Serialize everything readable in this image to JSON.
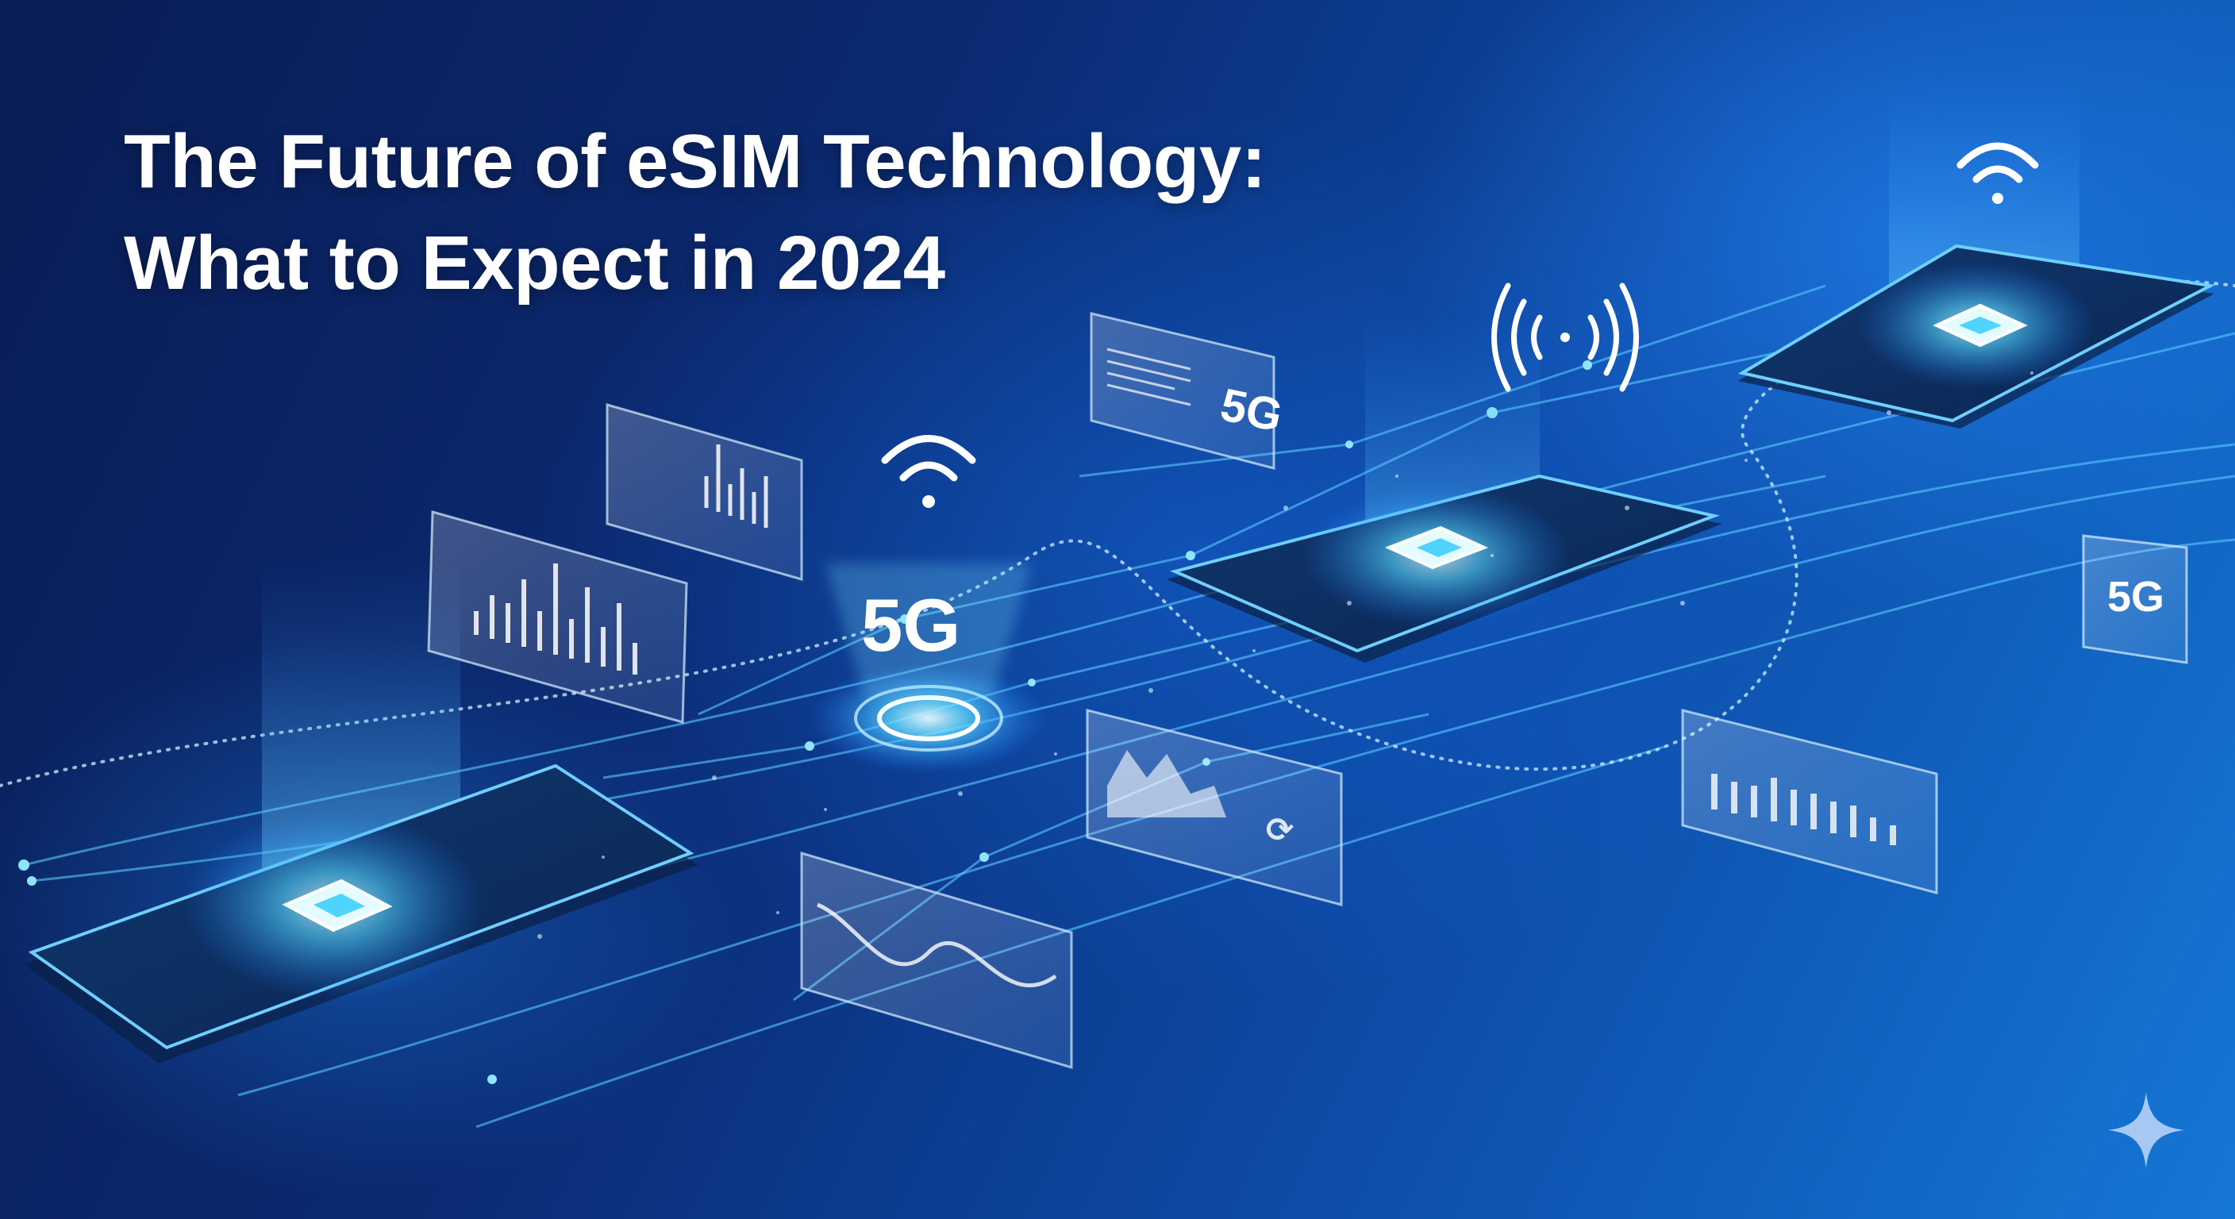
{
  "headline": {
    "line1": "The Future of eSIM Technology:",
    "line2": "What to Expect in 2024"
  },
  "badges": {
    "center_5g": "5G",
    "panel_top_5g": "5G",
    "panel_right_5g": "5G"
  },
  "icons": {
    "wifi": "wifi-icon",
    "broadcast": "broadcast-signal-icon",
    "chip": "chip-icon",
    "sparkle": "sparkle-icon"
  },
  "colors": {
    "background_dark": "#0a1d55",
    "background_light": "#1577d6",
    "glow": "#4fd3ff",
    "text": "#ffffff"
  }
}
